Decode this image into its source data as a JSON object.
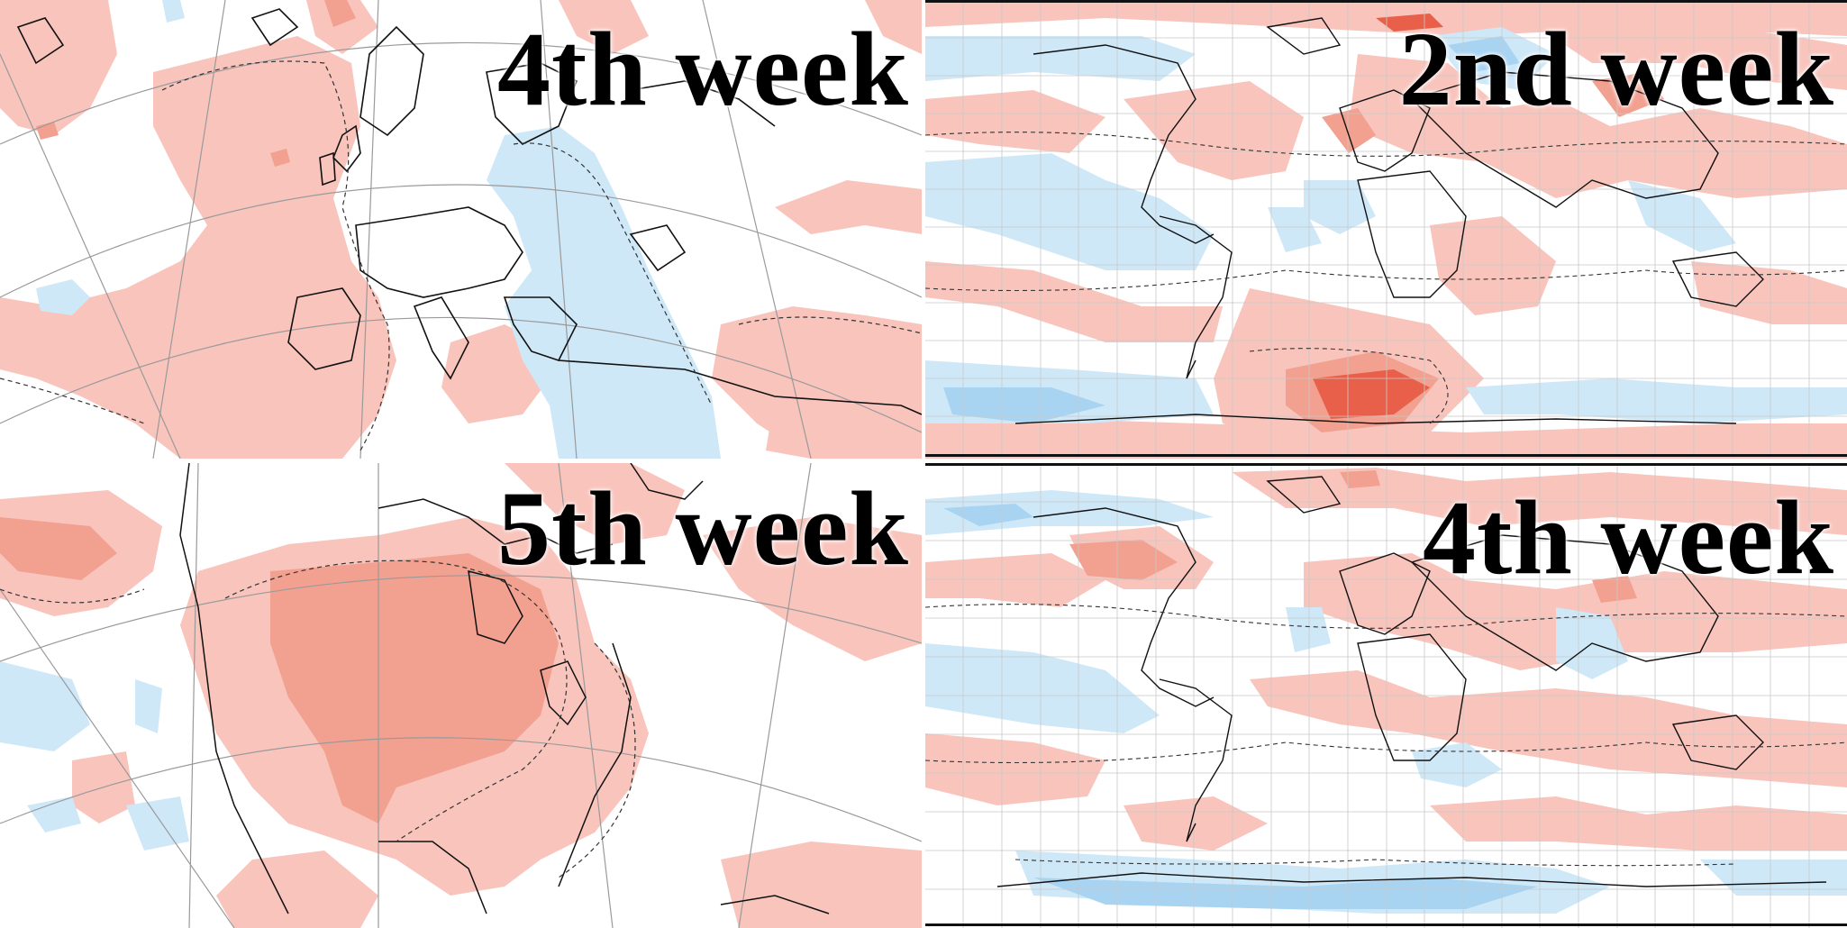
{
  "panels": {
    "top_left": {
      "label": "4th week",
      "projection": "polar-stereographic",
      "region": "Europe and North Atlantic"
    },
    "top_right": {
      "label": "2nd week",
      "projection": "equirectangular",
      "region": "Global"
    },
    "bottom_left": {
      "label": "5th week",
      "projection": "polar-stereographic",
      "region": "North America"
    },
    "bottom_right": {
      "label": "4th week",
      "projection": "equirectangular",
      "region": "Global"
    }
  },
  "colors": {
    "warm_light": "#f8c4bc",
    "warm_medium": "#f2a090",
    "warm_strong": "#e8604a",
    "cool_light": "#cfe8f8",
    "cool_medium": "#a8d4f2",
    "cool_strong": "#6fb4e6",
    "coastline": "#111111",
    "graticule": "#9a9a9a",
    "background": "#ffffff"
  }
}
